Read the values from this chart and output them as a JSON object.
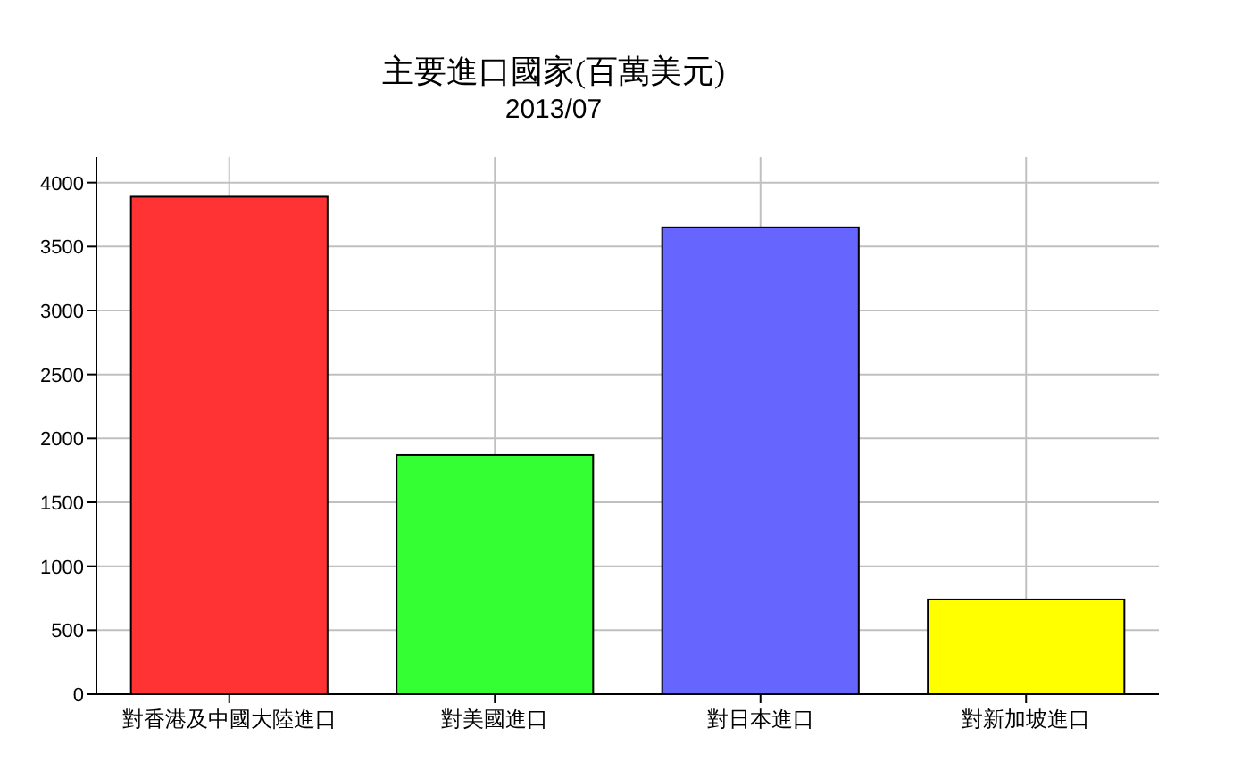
{
  "chart_data": {
    "type": "bar",
    "title": "主要進口國家(百萬美元)",
    "subtitle": "2013/07",
    "categories": [
      "對香港及中國大陸進口",
      "對美國進口",
      "對日本進口",
      "對新加坡進口"
    ],
    "values": [
      3890,
      1870,
      3650,
      740
    ],
    "colors": [
      "#ff3333",
      "#33ff33",
      "#6666ff",
      "#ffff00"
    ],
    "ylim": [
      0,
      4200
    ],
    "yticks": [
      0,
      500,
      1000,
      1500,
      2000,
      2500,
      3000,
      3500,
      4000
    ],
    "grid": true
  }
}
